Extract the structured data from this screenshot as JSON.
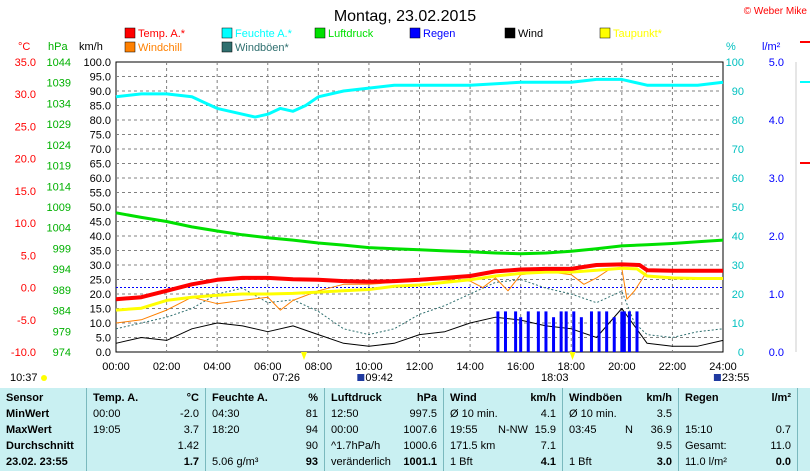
{
  "title": "Montag, 23.02.2015",
  "copyright": "© Weber Mike",
  "colors": {
    "temp": "#ff0000",
    "humidity": "#00ffff",
    "pressure": "#00e000",
    "rain": "#0000ff",
    "wind": "#000000",
    "dewpoint": "#ffff00",
    "windchill": "#ff8000",
    "gust": "#2f6f6f",
    "axis_temp": "#ff0000",
    "axis_pressure": "#00b000",
    "axis_hum": "#00c0c0",
    "axis_rain": "#0000ff"
  },
  "axis_units": {
    "temp": "°C",
    "pressure": "hPa",
    "wind": "km/h",
    "humidity": "%",
    "rain": "l/m²"
  },
  "legend": [
    {
      "label": "Temp. A.*",
      "color": "#ff0000"
    },
    {
      "label": "Feuchte A.*",
      "color": "#00ffff"
    },
    {
      "label": "Luftdruck",
      "color": "#00e000"
    },
    {
      "label": "Regen",
      "color": "#0000ff"
    },
    {
      "label": "Wind",
      "color": "#000000"
    },
    {
      "label": "Taupunkt*",
      "color": "#ffff00"
    },
    {
      "label": "Windchill",
      "color": "#ff8000"
    },
    {
      "label": "Windböen*",
      "color": "#2f6f6f"
    }
  ],
  "markers": {
    "sunrise": "07:26",
    "sunset": "18:03",
    "moonrise": "09:42",
    "moonset": "23:55",
    "daylength": "10:37"
  },
  "chart_data": {
    "type": "line",
    "x_ticks": [
      "00:00",
      "02:00",
      "04:00",
      "06:00",
      "08:00",
      "10:00",
      "12:00",
      "14:00",
      "16:00",
      "18:00",
      "20:00",
      "22:00",
      "24:00"
    ],
    "temp_ticks": [
      "35.0",
      "30.0",
      "25.0",
      "20.0",
      "15.0",
      "10.0",
      "5.0",
      "0.0",
      "-5.0",
      "-10.0"
    ],
    "pressure_ticks": [
      "1044",
      "1039",
      "1034",
      "1029",
      "1024",
      "1019",
      "1014",
      "1009",
      "1004",
      "999",
      "994",
      "989",
      "984",
      "979",
      "974"
    ],
    "wind_ticks": [
      "100.0",
      "95.0",
      "90.0",
      "85.0",
      "80.0",
      "75.0",
      "70.0",
      "65.0",
      "60.0",
      "55.0",
      "50.0",
      "45.0",
      "40.0",
      "35.0",
      "30.0",
      "25.0",
      "20.0",
      "15.0",
      "10.0",
      "5.0",
      "0.0"
    ],
    "hum_ticks": [
      "100",
      "90",
      "80",
      "70",
      "60",
      "50",
      "40",
      "30",
      "20",
      "10",
      "0"
    ],
    "rain_ticks": [
      "5.0",
      "4.0",
      "3.0",
      "2.0",
      "1.0",
      "0.0"
    ],
    "ylim_temp": [
      -10,
      35
    ],
    "ylim_pressure": [
      974,
      1044
    ],
    "ylim_wind": [
      0,
      100
    ],
    "ylim_humidity": [
      0,
      100
    ],
    "ylim_rain": [
      0,
      5
    ],
    "xlim_hours": [
      0,
      24
    ],
    "series": [
      {
        "name": "Temp. A.*",
        "axis": "temp",
        "x": [
          0,
          1,
          2,
          3,
          4,
          5,
          6,
          7,
          8,
          9,
          10,
          11,
          12,
          13,
          14,
          15,
          16,
          17,
          18,
          18.5,
          19,
          20,
          20.7,
          21,
          22,
          23,
          24
        ],
        "values": [
          -1.8,
          -1.5,
          -0.5,
          0.5,
          1.2,
          1.5,
          1.5,
          1.3,
          1.2,
          1.0,
          0.9,
          1.0,
          1.2,
          1.5,
          1.8,
          2.5,
          2.8,
          2.9,
          2.9,
          3.2,
          3.5,
          3.6,
          3.5,
          2.7,
          2.6,
          2.6,
          2.6
        ]
      },
      {
        "name": "Feuchte A.*",
        "axis": "humidity",
        "x": [
          0,
          1,
          2,
          3,
          3.5,
          4,
          5,
          5.5,
          6,
          6.5,
          7,
          7.5,
          8,
          9,
          10,
          11,
          12,
          14,
          16,
          18,
          19,
          20,
          21,
          22,
          23,
          24
        ],
        "values": [
          88,
          89,
          89,
          88,
          86,
          84,
          82,
          81,
          82,
          84,
          83,
          85,
          88,
          90,
          91,
          92,
          92,
          92,
          93,
          93,
          94,
          94,
          92,
          92,
          92,
          93
        ]
      },
      {
        "name": "Luftdruck",
        "axis": "pressure",
        "x": [
          0,
          1,
          2,
          3,
          4,
          5,
          6,
          7,
          8,
          9,
          10,
          11,
          12,
          13,
          14,
          15,
          16,
          17,
          18,
          19,
          20,
          21,
          22,
          23,
          24
        ],
        "values": [
          1007.6,
          1006.5,
          1005.5,
          1004.2,
          1003.2,
          1002.3,
          1001.6,
          1001.0,
          1000.3,
          999.8,
          999.2,
          998.9,
          998.7,
          998.4,
          998.2,
          997.9,
          997.7,
          997.9,
          998.3,
          998.9,
          999.6,
          999.9,
          1000.2,
          1000.6,
          1001.0
        ]
      },
      {
        "name": "Regen",
        "axis": "rain",
        "type": "bar",
        "x": [
          15.1,
          15.4,
          15.8,
          16.0,
          16.3,
          16.7,
          17.0,
          17.3,
          17.6,
          17.8,
          18.1,
          18.4,
          18.8,
          19.1,
          19.4,
          19.7,
          20.0,
          20.1,
          20.3,
          20.6
        ],
        "values": [
          0.7,
          0.7,
          0.7,
          0.6,
          0.7,
          0.7,
          0.7,
          0.6,
          0.7,
          0.7,
          0.7,
          0.6,
          0.7,
          0.7,
          0.7,
          0.6,
          0.7,
          0.7,
          0.7,
          0.7
        ]
      },
      {
        "name": "Wind",
        "axis": "wind",
        "x": [
          0,
          1,
          2,
          3,
          4,
          5,
          6,
          7,
          8,
          9,
          10,
          11,
          12,
          13,
          14,
          15,
          16,
          17,
          18,
          19,
          20,
          21,
          22,
          23,
          24
        ],
        "values": [
          3,
          5,
          4,
          8,
          10,
          9,
          7,
          9,
          6,
          3,
          2,
          3,
          6,
          7,
          10,
          12,
          11,
          9,
          8,
          5,
          15,
          3,
          2,
          2,
          4
        ]
      },
      {
        "name": "Taupunkt*",
        "axis": "temp",
        "x": [
          0,
          1,
          2,
          3,
          4,
          5,
          6,
          7,
          8,
          9,
          10,
          11,
          12,
          13,
          14,
          15,
          16,
          17,
          18,
          19,
          20,
          20.6,
          21,
          22,
          23,
          24
        ],
        "values": [
          -3.5,
          -3.2,
          -2.0,
          -1.5,
          -1.2,
          -1.0,
          -1.0,
          -0.9,
          -0.7,
          -0.5,
          -0.3,
          0.2,
          0.4,
          0.8,
          1.2,
          1.8,
          2.2,
          2.4,
          2.4,
          2.7,
          3.0,
          2.9,
          1.8,
          1.5,
          1.4,
          1.4
        ]
      },
      {
        "name": "Windchill",
        "axis": "temp",
        "x": [
          0,
          1,
          2,
          3,
          4,
          5,
          6,
          6.5,
          7,
          8,
          9,
          10,
          11,
          12,
          13,
          14,
          14.5,
          15,
          15.5,
          16,
          17,
          18,
          18.5,
          19,
          19.5,
          20,
          20.2,
          20.5,
          21,
          22,
          23,
          24
        ],
        "values": [
          -5.5,
          -5.0,
          -3.5,
          -1.5,
          -2.5,
          -2.0,
          -1.5,
          -3.5,
          -2.0,
          -0.5,
          0.5,
          0.5,
          0.8,
          1.0,
          1.2,
          1.0,
          0.0,
          1.5,
          -0.5,
          2.0,
          2.5,
          2.0,
          0.5,
          1.5,
          2.8,
          3.0,
          -1.8,
          -0.5,
          2.5,
          2.5,
          2.6,
          2.6
        ]
      },
      {
        "name": "Windböen*",
        "axis": "wind",
        "x": [
          0,
          1,
          2,
          3,
          4,
          5,
          6,
          7,
          8,
          9,
          10,
          11,
          12,
          13,
          14,
          15,
          16,
          17,
          18,
          19,
          20,
          20.5,
          21,
          22,
          23,
          24
        ],
        "values": [
          8,
          10,
          12,
          15,
          20,
          22,
          17,
          18,
          14,
          8,
          6,
          8,
          13,
          16,
          20,
          24,
          25,
          22,
          20,
          17,
          21,
          10,
          6,
          5,
          7,
          8
        ]
      }
    ]
  },
  "table": {
    "sensor": {
      "header": "Sensor",
      "rows": [
        "MinWert",
        "MaxWert",
        "Durchschnitt",
        "23.02. 23:55"
      ]
    },
    "temp": {
      "header": "Temp. A.",
      "unit": "°C",
      "rows": [
        {
          "t": "00:00",
          "v": "-2.0"
        },
        {
          "t": "19:05",
          "v": "3.7"
        },
        {
          "t": "",
          "v": "1.42"
        },
        {
          "t": "",
          "v": "1.7"
        }
      ]
    },
    "humidity": {
      "header": "Feuchte A.",
      "unit": "%",
      "rows": [
        {
          "t": "04:30",
          "v": "81"
        },
        {
          "t": "18:20",
          "v": "94"
        },
        {
          "t": "",
          "v": "90"
        },
        {
          "t": "5.06 g/m³",
          "v": "93"
        }
      ]
    },
    "pressure": {
      "header": "Luftdruck",
      "unit": "hPa",
      "rows": [
        {
          "t": "12:50",
          "v": "997.5"
        },
        {
          "t": "00:00",
          "v": "1007.6"
        },
        {
          "t": "^1.7hPa/h",
          "v": "1000.6"
        },
        {
          "t": "veränderlich",
          "v": "1001.1"
        }
      ]
    },
    "wind": {
      "header": "Wind",
      "unit": "km/h",
      "rows": [
        {
          "t": "Ø 10 min.",
          "m": "",
          "v": "4.1"
        },
        {
          "t": "19:55",
          "m": "N-NW",
          "v": "15.9"
        },
        {
          "t": "171.5 km",
          "m": "",
          "v": "7.1"
        },
        {
          "t": "1 Bft",
          "m": "",
          "v": "4.1"
        }
      ]
    },
    "gust": {
      "header": "Windböen",
      "unit": "km/h",
      "rows": [
        {
          "t": "Ø 10 min.",
          "m": "",
          "v": "3.5"
        },
        {
          "t": "03:45",
          "m": "N",
          "v": "36.9"
        },
        {
          "t": "",
          "m": "",
          "v": "9.5"
        },
        {
          "t": "1 Bft",
          "m": "",
          "v": "3.0"
        }
      ]
    },
    "rain": {
      "header": "Regen",
      "unit": "l/m²",
      "rows": [
        {
          "t": "",
          "v": ""
        },
        {
          "t": "15:10",
          "v": "0.7"
        },
        {
          "t": "Gesamt:",
          "v": "11.0"
        },
        {
          "t": "11.0 l/m²",
          "v": "0.0"
        }
      ]
    }
  }
}
